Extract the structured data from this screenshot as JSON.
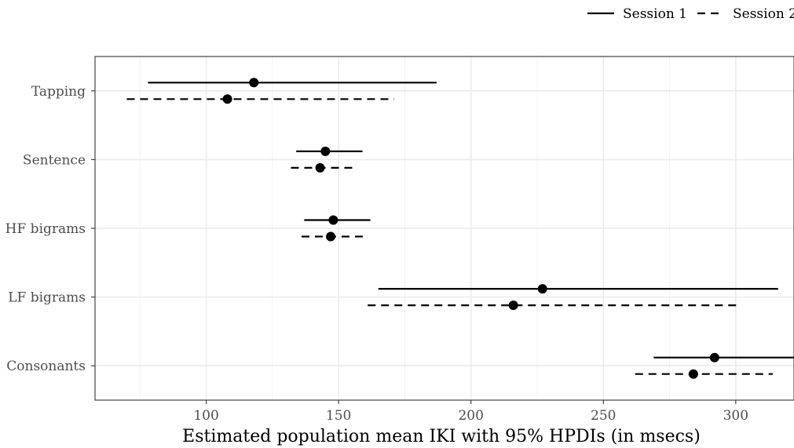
{
  "chart_data": {
    "type": "scatter",
    "variant": "interval-dot-plot",
    "title": "",
    "xlabel": "Estimated population mean IKI with 95% HPDIs (in msecs)",
    "ylabel": "",
    "xlim": [
      58,
      322
    ],
    "x_ticks": [
      100,
      150,
      200,
      250,
      300
    ],
    "x_tick_labels": [
      "100",
      "150",
      "200",
      "250",
      "300"
    ],
    "categories": [
      "Tapping",
      "Sentence",
      "HF bigrams",
      "LF bigrams",
      "Consonants"
    ],
    "grid": true,
    "legend": {
      "position": "top-right"
    },
    "series": [
      {
        "name": "Session 1",
        "line_style": "solid",
        "mean": [
          118,
          145,
          148,
          227,
          292
        ],
        "lower": [
          78,
          134,
          137,
          165,
          269
        ],
        "upper": [
          187,
          159,
          162,
          316,
          322
        ]
      },
      {
        "name": "Session 2",
        "line_style": "dashed",
        "mean": [
          108,
          143,
          147,
          216,
          284
        ],
        "lower": [
          70,
          132,
          136,
          161,
          262
        ],
        "upper": [
          171,
          157,
          161,
          302,
          314
        ]
      }
    ]
  }
}
